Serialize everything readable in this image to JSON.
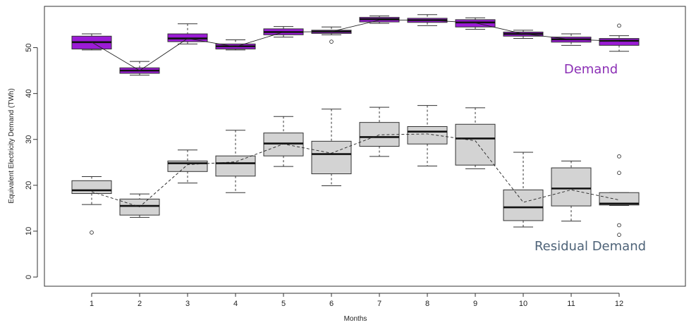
{
  "chart_data": {
    "type": "box",
    "xlabel": "Months",
    "ylabel": "Equivalent Electricity Demand (TWh)",
    "categories": [
      "1",
      "2",
      "3",
      "4",
      "5",
      "6",
      "7",
      "8",
      "9",
      "10",
      "11",
      "12"
    ],
    "ylim": [
      -2,
      59
    ],
    "yticks": [
      0,
      10,
      20,
      30,
      40,
      50
    ],
    "series": [
      {
        "name": "Demand",
        "color": "#9b1bd6",
        "mean_line": "solid",
        "boxes": [
          {
            "min": 49.5,
            "q1": 49.7,
            "median": 51.2,
            "q3": 52.5,
            "max": 53.0,
            "outliers": [],
            "mean": 51.2
          },
          {
            "min": 44.0,
            "q1": 44.4,
            "median": 45.0,
            "q3": 45.6,
            "max": 47.0,
            "outliers": [],
            "mean": 45.0
          },
          {
            "min": 50.8,
            "q1": 51.3,
            "median": 52.0,
            "q3": 53.0,
            "max": 55.2,
            "outliers": [],
            "mean": 52.0
          },
          {
            "min": 49.5,
            "q1": 49.7,
            "median": 50.3,
            "q3": 50.8,
            "max": 51.7,
            "outliers": [],
            "mean": 50.2
          },
          {
            "min": 52.3,
            "q1": 52.8,
            "median": 53.4,
            "q3": 54.1,
            "max": 54.6,
            "outliers": [],
            "mean": 53.4
          },
          {
            "min": 52.8,
            "q1": 53.1,
            "median": 53.5,
            "q3": 53.8,
            "max": 54.5,
            "outliers": [
              51.3
            ],
            "mean": 53.5
          },
          {
            "min": 55.3,
            "q1": 55.6,
            "median": 56.2,
            "q3": 56.6,
            "max": 56.9,
            "outliers": [],
            "mean": 56.0
          },
          {
            "min": 54.8,
            "q1": 55.5,
            "median": 56.0,
            "q3": 56.4,
            "max": 57.2,
            "outliers": [],
            "mean": 56.0
          },
          {
            "min": 54.0,
            "q1": 54.5,
            "median": 55.5,
            "q3": 56.1,
            "max": 56.5,
            "outliers": [],
            "mean": 55.4
          },
          {
            "min": 52.0,
            "q1": 52.5,
            "median": 53.0,
            "q3": 53.4,
            "max": 53.8,
            "outliers": [],
            "mean": 53.0
          },
          {
            "min": 50.5,
            "q1": 51.2,
            "median": 51.8,
            "q3": 52.3,
            "max": 53.0,
            "outliers": [],
            "mean": 51.8
          },
          {
            "min": 49.2,
            "q1": 50.5,
            "median": 51.5,
            "q3": 52.0,
            "max": 52.6,
            "outliers": [
              54.8
            ],
            "mean": 51.4
          }
        ]
      },
      {
        "name": "Residual Demand",
        "color": "#d3d3d3",
        "mean_line": "dashed",
        "boxes": [
          {
            "min": 15.8,
            "q1": 18.2,
            "median": 18.9,
            "q3": 21.0,
            "max": 21.9,
            "outliers": [
              9.7
            ],
            "mean": 18.6
          },
          {
            "min": 13.0,
            "q1": 13.5,
            "median": 15.5,
            "q3": 17.0,
            "max": 18.1,
            "outliers": [],
            "mean": 15.3
          },
          {
            "min": 20.5,
            "q1": 23.0,
            "median": 24.8,
            "q3": 25.3,
            "max": 27.7,
            "outliers": [],
            "mean": 24.5
          },
          {
            "min": 18.4,
            "q1": 22.0,
            "median": 24.8,
            "q3": 26.4,
            "max": 32.0,
            "outliers": [],
            "mean": 25.1
          },
          {
            "min": 24.1,
            "q1": 26.4,
            "median": 29.1,
            "q3": 31.4,
            "max": 35.0,
            "outliers": [],
            "mean": 29.0
          },
          {
            "min": 19.9,
            "q1": 22.5,
            "median": 26.8,
            "q3": 29.6,
            "max": 36.6,
            "outliers": [],
            "mean": 27.0
          },
          {
            "min": 26.3,
            "q1": 28.5,
            "median": 30.5,
            "q3": 33.7,
            "max": 37.0,
            "outliers": [],
            "mean": 31.0
          },
          {
            "min": 24.2,
            "q1": 29.0,
            "median": 31.7,
            "q3": 32.8,
            "max": 37.4,
            "outliers": [],
            "mean": 31.2
          },
          {
            "min": 23.6,
            "q1": 24.4,
            "median": 30.2,
            "q3": 33.3,
            "max": 36.9,
            "outliers": [],
            "mean": 29.7
          },
          {
            "min": 10.9,
            "q1": 12.3,
            "median": 15.2,
            "q3": 19.0,
            "max": 27.2,
            "outliers": [],
            "mean": 16.3
          },
          {
            "min": 12.2,
            "q1": 15.5,
            "median": 19.3,
            "q3": 23.8,
            "max": 25.3,
            "outliers": [],
            "mean": 19.0
          },
          {
            "min": 15.6,
            "q1": 15.7,
            "median": 16.0,
            "q3": 18.4,
            "max": 18.4,
            "outliers": [
              26.3,
              22.7,
              11.3,
              9.2
            ],
            "mean": 16.8
          }
        ]
      }
    ],
    "annotations": [
      {
        "text": "Demand",
        "color": "#8b2fb5"
      },
      {
        "text": "Residual Demand",
        "color": "#4e6378"
      }
    ]
  }
}
